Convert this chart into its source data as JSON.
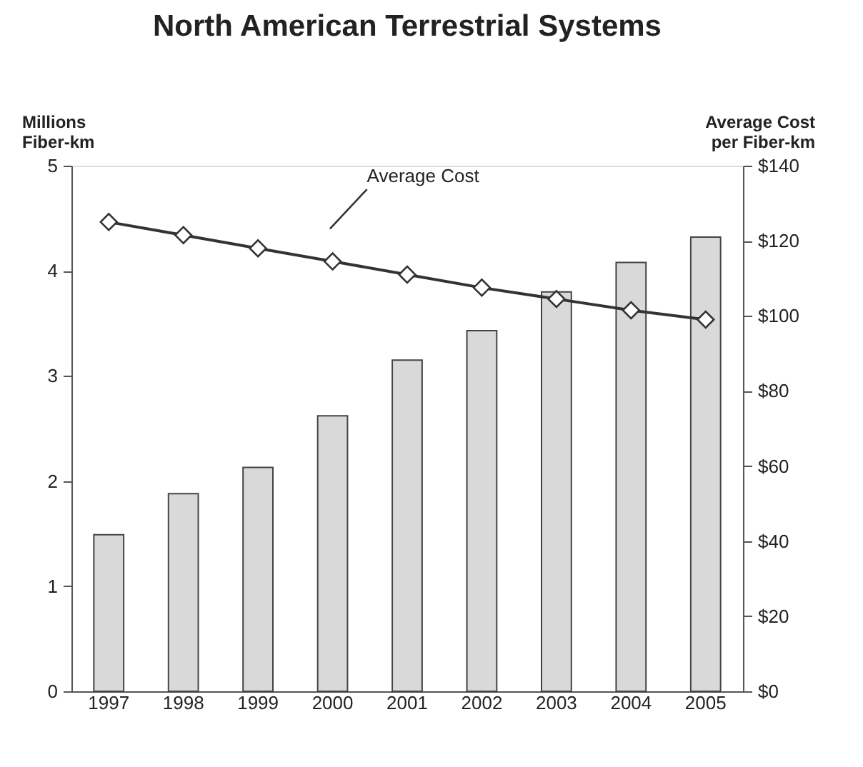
{
  "chart_data": {
    "type": "bar",
    "title": "North American Terrestrial Systems",
    "ylabel": "Millions\nFiber-km",
    "y2label": "Average Cost\nper Fiber-km",
    "categories": [
      "1997",
      "1998",
      "1999",
      "2000",
      "2001",
      "2002",
      "2003",
      "2004",
      "2005"
    ],
    "series": [
      {
        "color": "#d9d9d9",
        "values": [
          1.49,
          1.88,
          2.13,
          2.62,
          3.15,
          3.43,
          3.8,
          4.08,
          4.32
        ]
      },
      {
        "type": "line",
        "axis": "y2",
        "color": "#333333",
        "marker": "diamond",
        "values": [
          125,
          121.5,
          118,
          114.5,
          111,
          107.5,
          104.5,
          101.5,
          99
        ]
      }
    ],
    "ylim": [
      0,
      5
    ],
    "yticks": [
      0,
      1,
      2,
      3,
      4,
      5
    ],
    "y2lim": [
      0,
      140
    ],
    "y2ticks": [
      {
        "value": 0,
        "label": "$0"
      },
      {
        "value": 20,
        "label": "$20"
      },
      {
        "value": 40,
        "label": "$40"
      },
      {
        "value": 60,
        "label": "$60"
      },
      {
        "value": 80,
        "label": "$80"
      },
      {
        "value": 100,
        "label": "$100"
      },
      {
        "value": 120,
        "label": "$120"
      },
      {
        "value": 140,
        "label": "$140"
      }
    ],
    "annotations": [
      "Average Cost"
    ],
    "grid": false
  }
}
